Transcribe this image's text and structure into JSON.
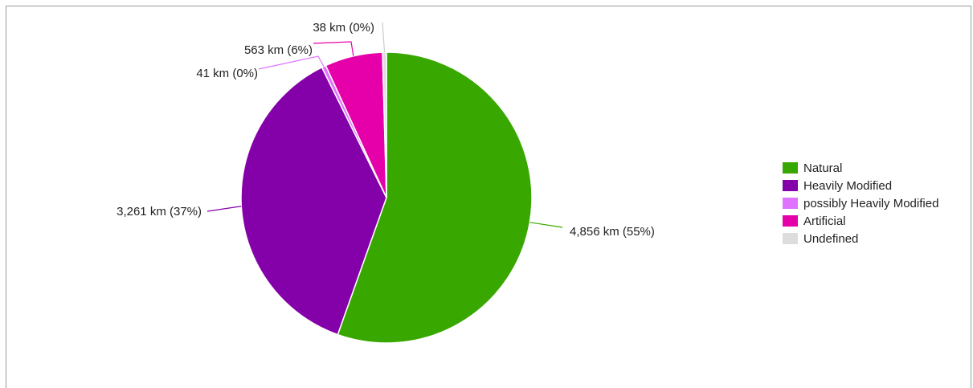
{
  "chart_data": {
    "type": "pie",
    "slices": [
      {
        "name": "Natural",
        "value": 4856,
        "label": "4,856 km (55%)",
        "color": "#38a800"
      },
      {
        "name": "Heavily Modified",
        "value": 3261,
        "label": "3,261 km (37%)",
        "color": "#8400a8"
      },
      {
        "name": "possibly Heavily Modified",
        "value": 41,
        "label": "41 km (0%)",
        "color": "#df73ff"
      },
      {
        "name": "Artificial",
        "value": 563,
        "label": "563 km (6%)",
        "color": "#e600a9"
      },
      {
        "name": "Undefined",
        "value": 38,
        "label": "38 km (0%)",
        "color": "#dddddd"
      }
    ],
    "legend": {
      "position": "right",
      "entries": [
        "Natural",
        "Heavily Modified",
        "possibly Heavily Modified",
        "Artificial",
        "Undefined"
      ]
    }
  }
}
